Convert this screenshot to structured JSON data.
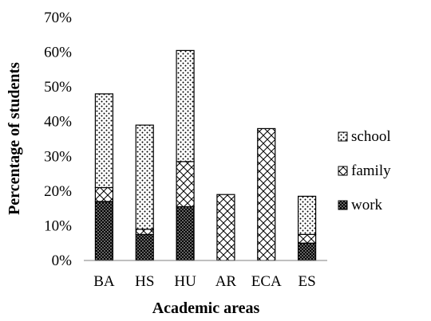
{
  "chart_data": {
    "type": "bar",
    "stacked": true,
    "categories": [
      "BA",
      "HS",
      "HU",
      "AR",
      "ECA",
      "ES"
    ],
    "series": [
      {
        "name": "work",
        "pattern": "dense-dots",
        "values": [
          17,
          7.5,
          15.5,
          0,
          0,
          5
        ]
      },
      {
        "name": "family",
        "pattern": "diagonal-hatch",
        "values": [
          4,
          1.5,
          13,
          19,
          38,
          2.5
        ]
      },
      {
        "name": "school",
        "pattern": "sparse-dots",
        "values": [
          27,
          30,
          32,
          0,
          0,
          11
        ]
      }
    ],
    "xlabel": "Academic areas",
    "ylabel": "Percentage of students",
    "ylim": [
      0,
      70
    ],
    "yticks": [
      "0%",
      "10%",
      "20%",
      "30%",
      "40%",
      "50%",
      "60%",
      "70%"
    ],
    "grid": false,
    "legend": {
      "placement": "right",
      "order": [
        "school",
        "family",
        "work"
      ]
    },
    "colors": {
      "ink": "#000000",
      "background": "#ffffff"
    }
  }
}
